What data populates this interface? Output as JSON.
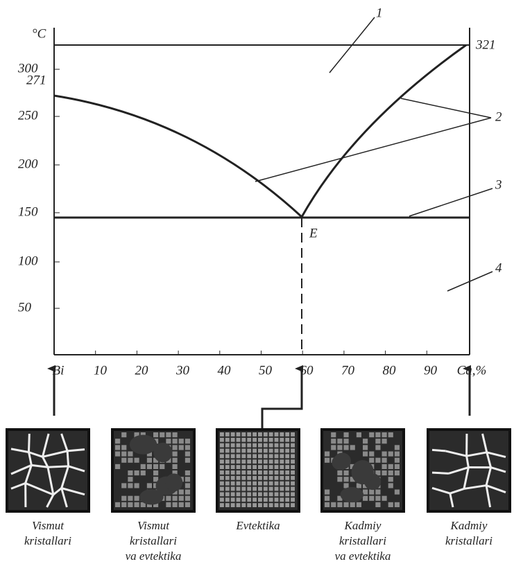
{
  "axis": {
    "y_unit": "°C",
    "y_labels": [
      "300",
      "250",
      "200",
      "150",
      "100",
      "50"
    ],
    "x_labels": [
      "Bi",
      "10",
      "20",
      "30",
      "40",
      "50",
      "60",
      "70",
      "80",
      "90",
      "Ca,%"
    ]
  },
  "annotations": {
    "top_value": "321",
    "left_value": "271",
    "eutectic": "E",
    "callouts": [
      "1",
      "2",
      "3",
      "4"
    ]
  },
  "micrographs": [
    {
      "caption": [
        "Vismut",
        "kristallari"
      ]
    },
    {
      "caption": [
        "Vismut",
        "kristallari",
        "va evtektika"
      ]
    },
    {
      "caption": [
        "Evtektika"
      ]
    },
    {
      "caption": [
        "Kadmiy",
        "kristallari",
        "va evtektika"
      ]
    },
    {
      "caption": [
        "Kadmiy",
        "kristallari"
      ]
    }
  ]
}
